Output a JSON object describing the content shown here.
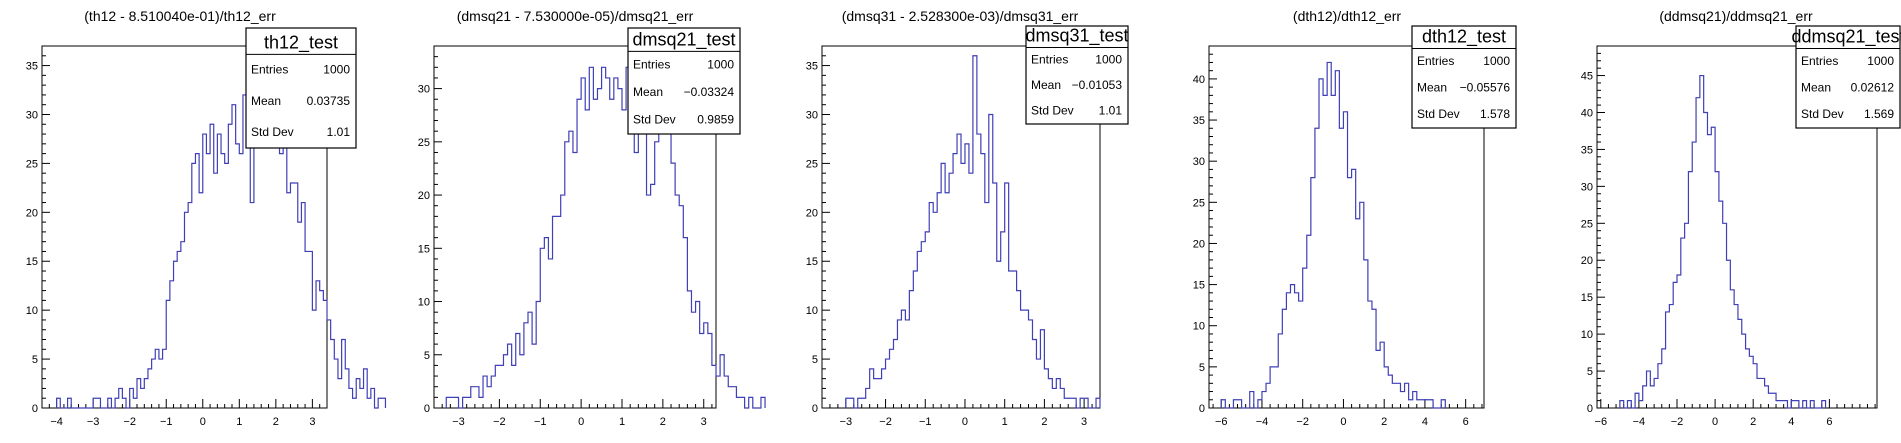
{
  "chart_data": [
    {
      "type": "histogram",
      "title": "(th12 - 8.510040e-01)/th12_err",
      "xlim": [
        -4.4,
        3.4
      ],
      "ylim": [
        0,
        37
      ],
      "xticks": [
        -4,
        -3,
        -2,
        -1,
        0,
        1,
        2,
        3
      ],
      "yticks": [
        0,
        5,
        10,
        15,
        20,
        25,
        30,
        35
      ],
      "bin_start": -4.0,
      "bin_width": 0.1,
      "values": [
        1,
        0,
        0,
        1,
        0,
        0,
        0,
        0,
        0,
        0,
        1,
        1,
        0,
        0,
        1,
        0,
        1,
        2,
        1,
        0,
        2,
        1,
        3,
        2,
        3,
        4,
        5,
        6,
        5,
        6,
        11,
        13,
        15,
        16,
        17,
        20,
        21,
        25,
        26,
        22,
        28,
        26,
        29,
        24,
        28,
        26,
        25,
        29,
        31,
        27,
        26,
        32,
        32,
        21,
        29,
        34,
        35,
        27,
        29,
        29,
        27,
        26,
        30,
        22,
        23,
        23,
        19,
        21,
        16,
        16,
        10,
        13,
        12,
        11,
        9,
        7,
        5,
        3,
        7,
        4,
        2,
        1,
        3,
        2,
        4,
        1,
        2,
        0,
        1,
        1
      ],
      "stats": {
        "name": "th12_test",
        "rows": [
          [
            "Entries",
            "1000"
          ],
          [
            "Mean",
            "0.03735"
          ],
          [
            "Std Dev",
            "1.01"
          ]
        ]
      }
    },
    {
      "type": "histogram",
      "title": "(dmsq21 - 7.530000e-05)/dmsq21_err",
      "xlim": [
        -3.6,
        3.3
      ],
      "ylim": [
        0,
        34
      ],
      "xticks": [
        -3,
        -2,
        -1,
        0,
        1,
        2,
        3
      ],
      "yticks": [
        0,
        5,
        10,
        15,
        20,
        25,
        30
      ],
      "bin_start": -3.3,
      "bin_width": 0.1,
      "values": [
        1,
        1,
        1,
        0,
        1,
        1,
        2,
        2,
        1,
        3,
        2,
        3,
        4,
        4,
        5,
        6,
        4,
        7,
        5,
        8,
        9,
        6,
        10,
        15,
        16,
        14,
        18,
        18,
        20,
        25,
        26,
        24,
        29,
        31,
        28,
        32,
        29,
        30,
        32,
        31,
        29,
        31,
        30,
        28,
        32,
        29,
        24,
        26,
        27,
        20,
        21,
        25,
        27,
        31,
        26,
        23,
        20,
        19,
        16,
        11,
        9,
        10,
        7,
        8,
        7,
        4,
        3,
        5,
        3,
        2,
        2,
        1,
        1,
        0,
        1,
        0,
        0,
        1
      ],
      "stats": {
        "name": "dmsq21_test",
        "rows": [
          [
            "Entries",
            "1000"
          ],
          [
            "Mean",
            "−0.03324"
          ],
          [
            "Std Dev",
            "0.9859"
          ]
        ]
      }
    },
    {
      "type": "histogram",
      "title": "(dmsq31 - 2.528300e-03)/dmsq31_err",
      "xlim": [
        -3.6,
        3.4
      ],
      "ylim": [
        0,
        37
      ],
      "xticks": [
        -3,
        -2,
        -1,
        0,
        1,
        2,
        3
      ],
      "yticks": [
        0,
        5,
        10,
        15,
        20,
        25,
        30,
        35
      ],
      "bin_start": -3.0,
      "bin_width": 0.1,
      "values": [
        1,
        1,
        0,
        1,
        1,
        2,
        4,
        3,
        3,
        4,
        5,
        6,
        7,
        9,
        10,
        9,
        12,
        14,
        16,
        17,
        18,
        21,
        20,
        22,
        25,
        22,
        24,
        26,
        28,
        25,
        27,
        24,
        36,
        28,
        26,
        21,
        30,
        23,
        15,
        18,
        23,
        14,
        14,
        12,
        10,
        10,
        9,
        7,
        5,
        8,
        4,
        3,
        2,
        3,
        2,
        1,
        1,
        1,
        0,
        1,
        1,
        0,
        0,
        1
      ],
      "stats": {
        "name": "dmsq31_test",
        "rows": [
          [
            "Entries",
            "1000"
          ],
          [
            "Mean",
            "−0.01053"
          ],
          [
            "Std Dev",
            "1.01"
          ]
        ]
      }
    },
    {
      "type": "histogram",
      "title": "(dth12)/dth12_err",
      "xlim": [
        -6.6,
        6.9
      ],
      "ylim": [
        0,
        44
      ],
      "xticks": [
        -6,
        -4,
        -2,
        0,
        2,
        4,
        6
      ],
      "yticks": [
        0,
        5,
        10,
        15,
        20,
        25,
        30,
        35,
        40
      ],
      "bin_start": -6.0,
      "bin_width": 0.2,
      "values": [
        1,
        0,
        0,
        1,
        1,
        0,
        0,
        2,
        0,
        1,
        2,
        3,
        5,
        5,
        9,
        12,
        14,
        15,
        14,
        13,
        17,
        21,
        28,
        34,
        40,
        38,
        42,
        38,
        41,
        34,
        36,
        28,
        29,
        23,
        25,
        18,
        13,
        12,
        7,
        8,
        5,
        4,
        3,
        3,
        2,
        3,
        1,
        2,
        1,
        1,
        1,
        1,
        0,
        0,
        1
      ],
      "stats": {
        "name": "dth12_test",
        "rows": [
          [
            "Entries",
            "1000"
          ],
          [
            "Mean",
            "−0.05576"
          ],
          [
            "Std Dev",
            "1.578"
          ]
        ]
      }
    },
    {
      "type": "histogram",
      "title": "(ddmsq21)/ddmsq21_err",
      "xlim": [
        -6.2,
        8.5
      ],
      "ylim": [
        0,
        49
      ],
      "xticks": [
        -6,
        -4,
        -2,
        0,
        2,
        4,
        6
      ],
      "yticks": [
        0,
        5,
        10,
        15,
        20,
        25,
        30,
        35,
        40,
        45
      ],
      "bin_start": -5.0,
      "bin_width": 0.2,
      "values": [
        1,
        0,
        1,
        0,
        2,
        1,
        3,
        5,
        3,
        4,
        6,
        8,
        13,
        14,
        17,
        18,
        23,
        25,
        32,
        36,
        42,
        45,
        40,
        37,
        38,
        32,
        28,
        25,
        20,
        16,
        14,
        12,
        10,
        8,
        7,
        6,
        4,
        4,
        3,
        2,
        2,
        1,
        1,
        1,
        0,
        1,
        1,
        0,
        1,
        0,
        1,
        0,
        0,
        1
      ],
      "stats": {
        "name": "ddmsq21_test",
        "rows": [
          [
            "Entries",
            "1000"
          ],
          [
            "Mean",
            "0.02612"
          ],
          [
            "Std Dev",
            "1.569"
          ]
        ]
      }
    }
  ]
}
